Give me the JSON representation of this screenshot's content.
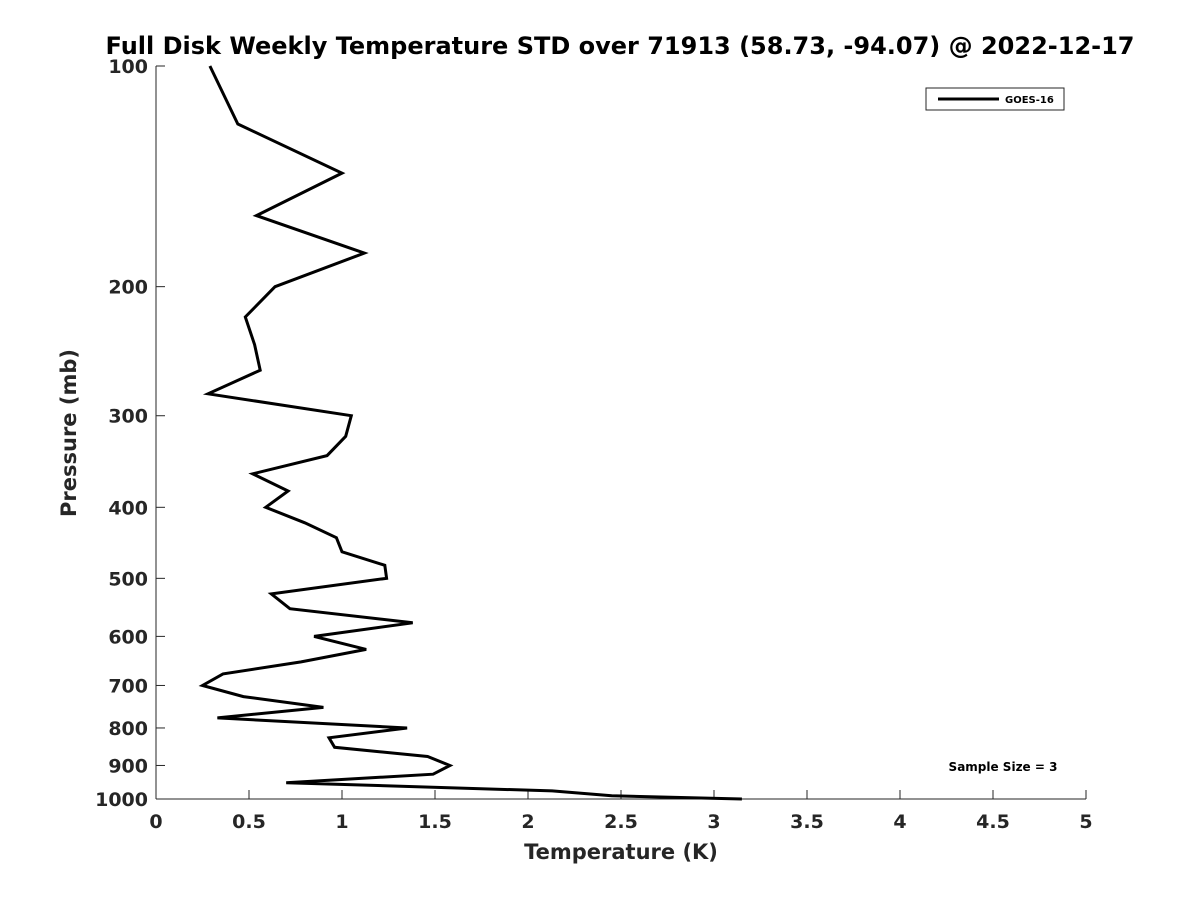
{
  "chart_data": {
    "type": "line",
    "title": "Full Disk Weekly Temperature STD over 71913 (58.73, -94.07) @ 2022-12-17",
    "xlabel": "Temperature (K)",
    "ylabel": "Pressure (mb)",
    "xlim": [
      0,
      5
    ],
    "ylim": [
      100,
      1000
    ],
    "y_scale": "log",
    "y_reversed": true,
    "x_ticks": [
      0,
      0.5,
      1,
      1.5,
      2,
      2.5,
      3,
      3.5,
      4,
      4.5,
      5
    ],
    "x_tick_labels": [
      "0",
      "0.5",
      "1",
      "1.5",
      "2",
      "2.5",
      "3",
      "3.5",
      "4",
      "4.5",
      "5"
    ],
    "y_ticks": [
      100,
      200,
      300,
      400,
      500,
      600,
      700,
      800,
      900,
      1000
    ],
    "y_tick_labels": [
      "100",
      "200",
      "300",
      "400",
      "500",
      "600",
      "700",
      "800",
      "900",
      "1000"
    ],
    "grid": false,
    "legend_position": "top-right",
    "annotation": "Sample Size = 3",
    "series": [
      {
        "name": "GOES-16",
        "color": "#000000",
        "x": [
          0.29,
          0.44,
          1.0,
          0.54,
          1.12,
          0.64,
          0.48,
          0.53,
          0.56,
          0.28,
          1.05,
          1.02,
          0.92,
          0.52,
          0.71,
          0.59,
          0.8,
          0.97,
          1.0,
          1.23,
          1.24,
          0.62,
          0.72,
          1.38,
          0.85,
          1.13,
          0.78,
          0.36,
          0.25,
          0.47,
          0.9,
          0.33,
          1.35,
          0.93,
          0.96,
          1.46,
          1.58,
          1.49,
          0.7,
          2.13,
          2.45,
          3.15
        ],
        "y": [
          100,
          120,
          140,
          160,
          180,
          200,
          220,
          240,
          260,
          280,
          300,
          320,
          340,
          360,
          380,
          400,
          420,
          440,
          460,
          480,
          500,
          525,
          550,
          575,
          600,
          625,
          650,
          675,
          700,
          725,
          750,
          775,
          800,
          825,
          850,
          875,
          900,
          925,
          950,
          975,
          990,
          1000
        ]
      }
    ]
  }
}
